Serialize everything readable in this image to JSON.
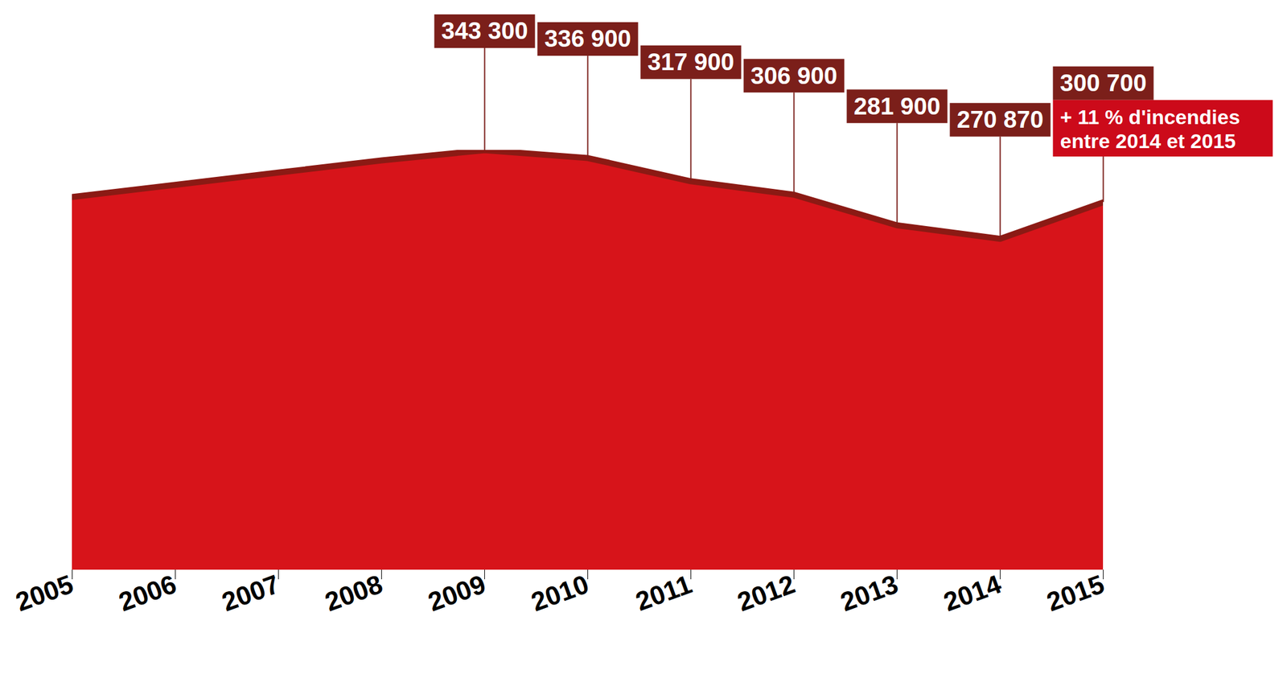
{
  "chart_data": {
    "type": "area",
    "x": [
      2005,
      2006,
      2007,
      2008,
      2009,
      2010,
      2011,
      2012,
      2013,
      2014,
      2015
    ],
    "values": [
      305000,
      315000,
      325000,
      335000,
      343300,
      336900,
      317900,
      306900,
      281900,
      270870,
      300700
    ],
    "value_labels": [
      null,
      null,
      null,
      null,
      "343 300",
      "336 900",
      "317 900",
      "306 900",
      "281 900",
      "270 870",
      "300 700"
    ],
    "color": "#d7141a",
    "xlim": [
      2005,
      2015
    ],
    "xticks": [
      2005,
      2006,
      2007,
      2008,
      2009,
      2010,
      2011,
      2012,
      2013,
      2014,
      2015
    ],
    "data_labels": true,
    "tick_labels": "x",
    "annotation": [
      "+ 11 % d'incendies",
      "entre 2014 et 2015"
    ]
  }
}
